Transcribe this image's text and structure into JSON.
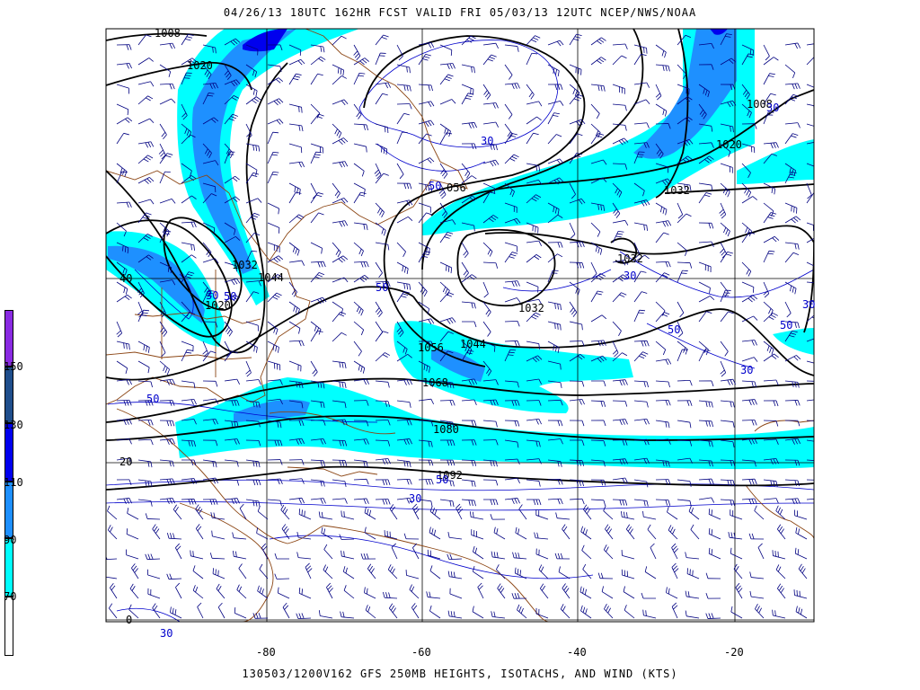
{
  "header": {
    "top_title": "04/26/13 18UTC  162HR  FCST VALID FRI 05/03/13 12UTC  NCEP/NWS/NOAA",
    "bottom_title": "130503/1200V162 GFS 250MB HEIGHTS, ISOTACHS, AND WIND (KTS)"
  },
  "legend": {
    "labels": [
      "150",
      "130",
      "110",
      "90",
      "70"
    ],
    "colors": [
      "#8a2be2",
      "#1f4e8c",
      "#0000ee",
      "#1e90ff",
      "#00ffff",
      "#ffffff"
    ]
  },
  "axes": {
    "lon_labels": [
      "-80",
      "-60",
      "-40",
      "-20"
    ],
    "lat_labels": [
      "40",
      "20",
      "0"
    ]
  },
  "height_labels": [
    "1008",
    "1020",
    "1032",
    "1044",
    "1020",
    "056",
    "1032",
    "1032",
    "1008",
    "1020",
    "1032",
    "1056",
    "1044",
    "1068",
    "1080",
    "1092"
  ],
  "isotach_labels": [
    "30",
    "50",
    "50",
    "30",
    "30",
    "30",
    "50",
    "30",
    "30",
    "50",
    "50",
    "30",
    "50",
    "50",
    "30",
    "30"
  ],
  "colors": {
    "isotach_70": "#00ffff",
    "isotach_90": "#1e90ff",
    "isotach_110": "#0000ee",
    "height_contour": "#000000",
    "isotach_line": "#0000cc",
    "coastline": "#8b4513",
    "grid": "#000000",
    "wind_barb": "#000080"
  }
}
